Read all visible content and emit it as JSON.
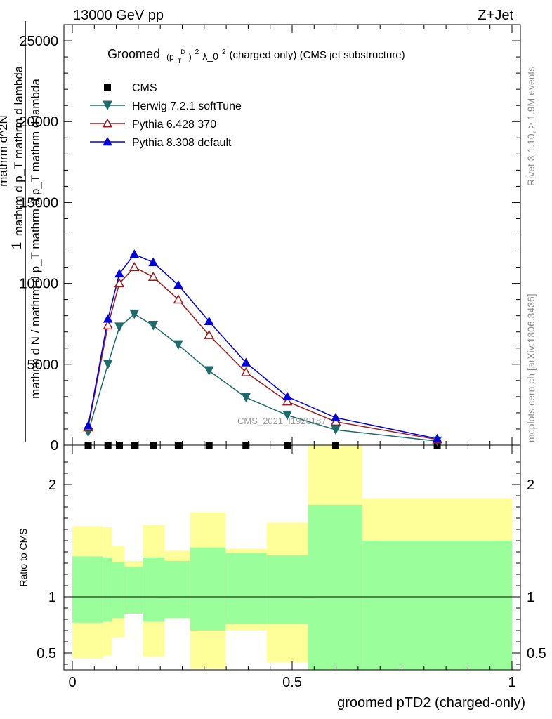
{
  "header": {
    "energy": "13000 GeV pp",
    "process": "Z+Jet"
  },
  "side": {
    "rivet": "Rivet 3.1.10, ≥ 1.9M events",
    "mcplots": "mcplots.cern.ch [arXiv:1306.3436]"
  },
  "colors": {
    "cms": "#000000",
    "herwig": "#1f6b6b",
    "pythia6": "#9b1c1c",
    "pythia8": "#0000dd",
    "band_inner": "#9aff9a",
    "band_outer": "#ffff99"
  },
  "chart_data": [
    {
      "type": "line",
      "title_parts": [
        "Groomed",
        "(p",
        "T",
        "D",
        ")",
        "2",
        " λ_0",
        "2",
        "  (charged only) (CMS jet substructure)"
      ],
      "ylabel_numerator": "1",
      "ylabel_denominator": "mathrm d N / mathrm d p_T mathrm d p_T mathrm d lambda",
      "ylabel_numerator2": "mathrm d^2N",
      "ylabel_denominator2": "mathrm d p_T mathrm d lambda",
      "watermark": "CMS_2021_I1920187",
      "xlim": [
        0,
        1
      ],
      "ylim": [
        0,
        26000
      ],
      "yticks": [
        0,
        5000,
        10000,
        15000,
        20000,
        25000
      ],
      "ytick_labels": [
        "0",
        "5000",
        "10000",
        "15000",
        "20000",
        "25000"
      ],
      "x": [
        0.036,
        0.081,
        0.107,
        0.141,
        0.184,
        0.241,
        0.311,
        0.395,
        0.489,
        0.599,
        0.83
      ],
      "series": [
        {
          "name": "CMS",
          "key": "cms",
          "marker": "square",
          "values": [
            0,
            0,
            0,
            0,
            0,
            0,
            0,
            0,
            0,
            0,
            0
          ]
        },
        {
          "name": "Herwig 7.2.1 softTune",
          "key": "herwig",
          "marker": "tri-down",
          "values": [
            800,
            5000,
            7300,
            8100,
            7400,
            6200,
            4600,
            2950,
            1850,
            950,
            250
          ]
        },
        {
          "name": "Pythia 6.428 370",
          "key": "pythia6",
          "marker": "tri-up-open",
          "values": [
            1100,
            7400,
            10000,
            11000,
            10400,
            9000,
            6800,
            4500,
            2700,
            1450,
            350
          ]
        },
        {
          "name": "Pythia 8.308 default",
          "key": "pythia8",
          "marker": "tri-up",
          "values": [
            1200,
            7800,
            10600,
            11800,
            11300,
            9900,
            7650,
            5100,
            3000,
            1700,
            400
          ]
        }
      ]
    },
    {
      "type": "area",
      "ylabel": "Ratio to CMS",
      "xlabel": "groomed pTD2 (charged-only)",
      "xlim": [
        0,
        1
      ],
      "ylim": [
        0.35,
        2.35
      ],
      "xticks": [
        0,
        0.5,
        1
      ],
      "xtick_labels": [
        "0",
        "0.5",
        "1"
      ],
      "yticks": [
        0.5,
        1,
        2
      ],
      "ytick_labels": [
        "0.5",
        "1",
        "2"
      ],
      "reference": 1,
      "bins": [
        0,
        0.07,
        0.09,
        0.118,
        0.16,
        0.21,
        0.268,
        0.348,
        0.442,
        0.536,
        0.66,
        1
      ],
      "inner_low": [
        0.77,
        0.78,
        0.81,
        0.85,
        0.78,
        0.81,
        0.7,
        0.76,
        0.76,
        0.35,
        0.35
      ],
      "inner_high": [
        1.36,
        1.35,
        1.31,
        1.27,
        1.35,
        1.32,
        1.44,
        1.39,
        1.37,
        1.82,
        1.5
      ],
      "outer_low": [
        0.45,
        0.48,
        0.64,
        0.85,
        0.47,
        0.81,
        0.36,
        0.7,
        0.42,
        0.35,
        0.61
      ],
      "outer_high": [
        1.63,
        1.62,
        1.45,
        1.32,
        1.64,
        1.41,
        1.75,
        1.43,
        1.66,
        2.35,
        1.88
      ]
    }
  ]
}
